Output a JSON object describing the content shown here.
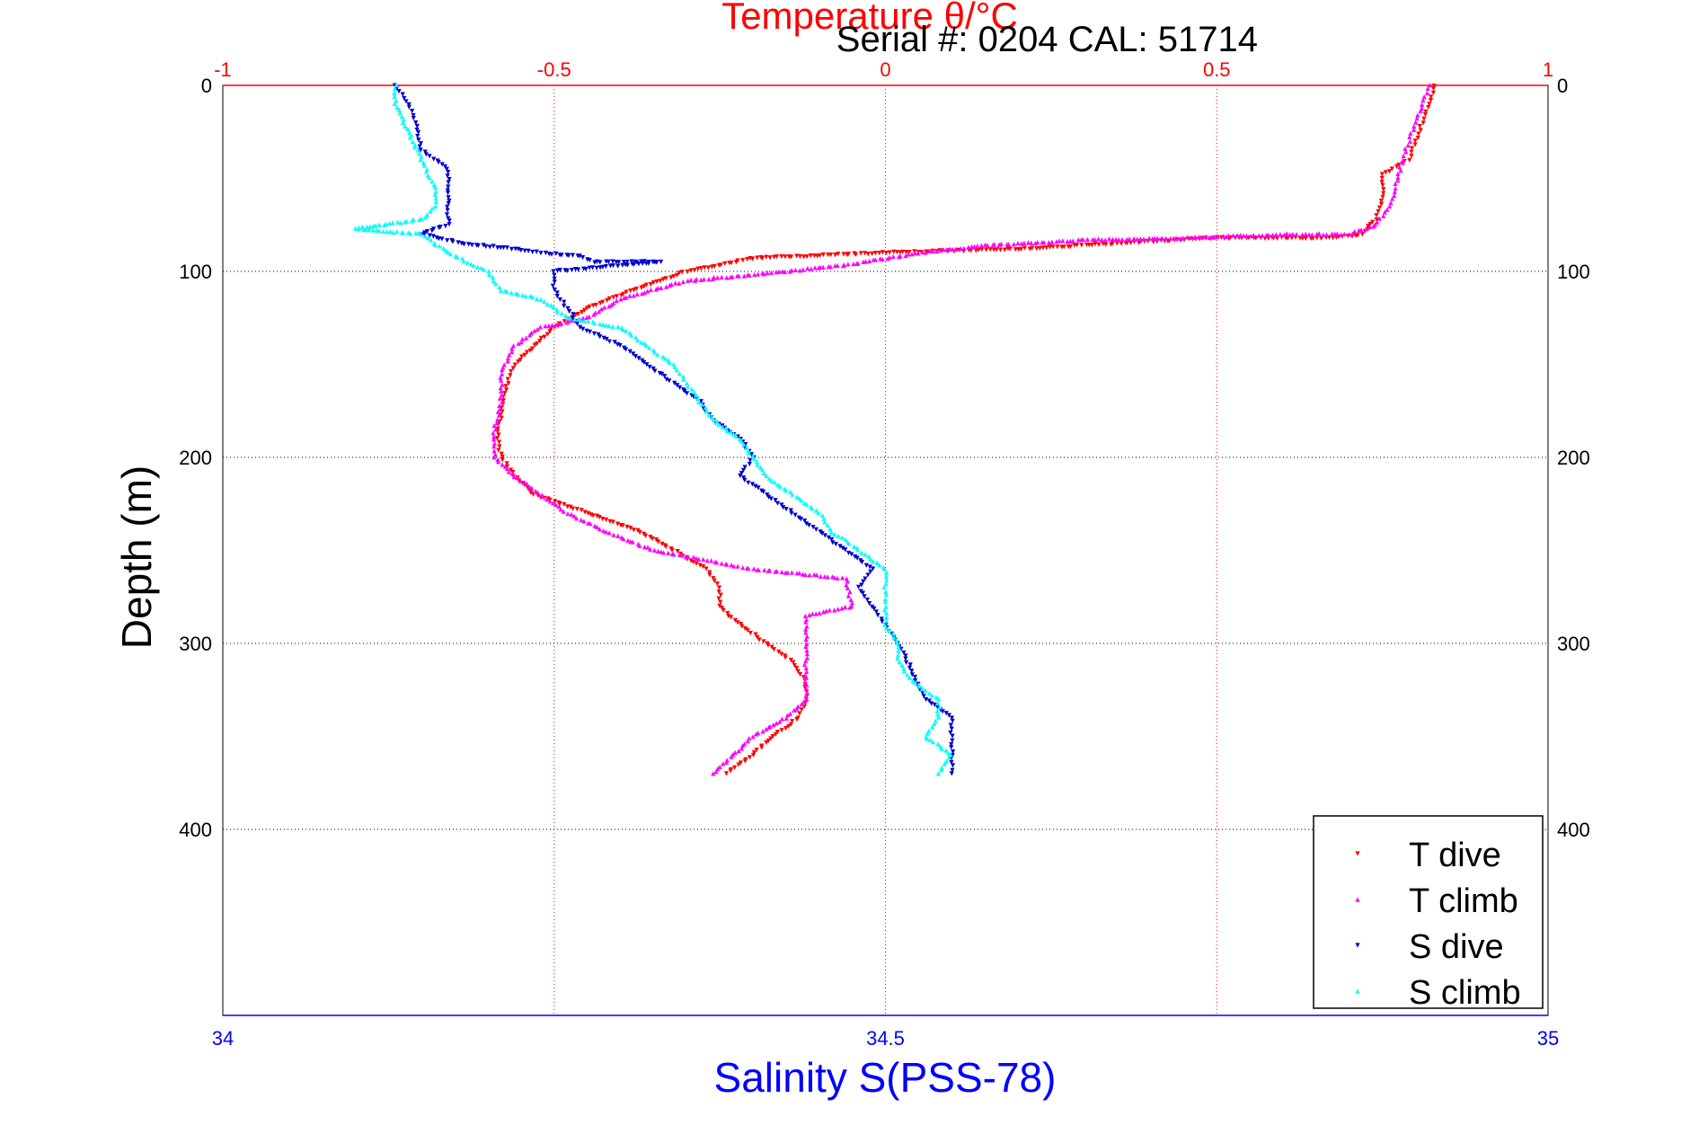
{
  "chart_data": {
    "type": "scatter",
    "title": "Temperature θ/°C",
    "subtitle": "Serial #: 0204  CAL: 51714",
    "xlabel_top": "Temperature θ/°C",
    "xlabel_bottom": "Salinity S(PSS-78)",
    "ylabel": "Depth (m)",
    "top_axis": {
      "range": [
        -1,
        1
      ],
      "ticks": [
        -1,
        -0.5,
        0,
        0.5,
        1
      ],
      "tick_labels": [
        "-1",
        "-0.5",
        "0",
        "0.5",
        "1"
      ],
      "color": "#ff0000"
    },
    "bottom_axis": {
      "range": [
        34,
        35
      ],
      "ticks": [
        34,
        34.5,
        35
      ],
      "tick_labels": [
        "34",
        "34.5",
        "35"
      ],
      "color": "#0000ff"
    },
    "y_axis": {
      "range": [
        0,
        500
      ],
      "reversed": true,
      "ticks": [
        0,
        100,
        200,
        300,
        400
      ],
      "tick_labels": [
        "0",
        "100",
        "200",
        "300",
        "400"
      ]
    },
    "grid": true,
    "legend": {
      "placement": "bottom-right",
      "entries": [
        "T dive",
        "T climb",
        "S dive",
        "S climb"
      ]
    },
    "series": [
      {
        "name": "T dive",
        "axis": "top",
        "color": "#ff0000",
        "points": [
          [
            0.83,
            0
          ],
          [
            0.82,
            10
          ],
          [
            0.81,
            20
          ],
          [
            0.8,
            30
          ],
          [
            0.79,
            40
          ],
          [
            0.75,
            48
          ],
          [
            0.75,
            60
          ],
          [
            0.74,
            72
          ],
          [
            0.72,
            80
          ],
          [
            0.68,
            82
          ],
          [
            0.5,
            82
          ],
          [
            0.35,
            85
          ],
          [
            0.2,
            88
          ],
          [
            0,
            90
          ],
          [
            -0.2,
            93
          ],
          [
            -0.3,
            100
          ],
          [
            -0.38,
            110
          ],
          [
            -0.45,
            120
          ],
          [
            -0.5,
            130
          ],
          [
            -0.53,
            140
          ],
          [
            -0.56,
            150
          ],
          [
            -0.57,
            160
          ],
          [
            -0.58,
            175
          ],
          [
            -0.585,
            190
          ],
          [
            -0.58,
            200
          ],
          [
            -0.56,
            210
          ],
          [
            -0.53,
            220
          ],
          [
            -0.45,
            230
          ],
          [
            -0.37,
            240
          ],
          [
            -0.32,
            250
          ],
          [
            -0.27,
            260
          ],
          [
            -0.25,
            270
          ],
          [
            -0.25,
            280
          ],
          [
            -0.22,
            290
          ],
          [
            -0.18,
            300
          ],
          [
            -0.14,
            310
          ],
          [
            -0.12,
            320
          ],
          [
            -0.12,
            330
          ],
          [
            -0.13,
            340
          ],
          [
            -0.17,
            350
          ],
          [
            -0.2,
            360
          ],
          [
            -0.24,
            370
          ]
        ]
      },
      {
        "name": "T climb",
        "axis": "top",
        "color": "#ff00ff",
        "points": [
          [
            0.82,
            0
          ],
          [
            0.81,
            10
          ],
          [
            0.8,
            20
          ],
          [
            0.79,
            30
          ],
          [
            0.78,
            40
          ],
          [
            0.77,
            55
          ],
          [
            0.76,
            65
          ],
          [
            0.74,
            75
          ],
          [
            0.7,
            80
          ],
          [
            0.6,
            80
          ],
          [
            0.45,
            82
          ],
          [
            0.3,
            83
          ],
          [
            0.15,
            86
          ],
          [
            0.05,
            90
          ],
          [
            -0.05,
            96
          ],
          [
            -0.15,
            100
          ],
          [
            -0.3,
            105
          ],
          [
            -0.4,
            115
          ],
          [
            -0.45,
            125
          ],
          [
            -0.52,
            130
          ],
          [
            -0.56,
            140
          ],
          [
            -0.58,
            155
          ],
          [
            -0.58,
            170
          ],
          [
            -0.59,
            185
          ],
          [
            -0.59,
            200
          ],
          [
            -0.56,
            210
          ],
          [
            -0.52,
            220
          ],
          [
            -0.48,
            230
          ],
          [
            -0.42,
            240
          ],
          [
            -0.35,
            250
          ],
          [
            -0.2,
            260
          ],
          [
            -0.06,
            265
          ],
          [
            -0.05,
            280
          ],
          [
            -0.12,
            285
          ],
          [
            -0.12,
            300
          ],
          [
            -0.12,
            315
          ],
          [
            -0.12,
            330
          ],
          [
            -0.15,
            340
          ],
          [
            -0.2,
            350
          ],
          [
            -0.23,
            360
          ],
          [
            -0.26,
            370
          ]
        ]
      },
      {
        "name": "S dive",
        "axis": "bottom",
        "color": "#0000cc",
        "points": [
          [
            34.13,
            0
          ],
          [
            34.14,
            10
          ],
          [
            34.145,
            20
          ],
          [
            34.15,
            35
          ],
          [
            34.17,
            45
          ],
          [
            34.17,
            60
          ],
          [
            34.17,
            75
          ],
          [
            34.15,
            80
          ],
          [
            34.18,
            85
          ],
          [
            34.22,
            88
          ],
          [
            34.24,
            90
          ],
          [
            34.27,
            92
          ],
          [
            34.28,
            95
          ],
          [
            34.33,
            95
          ],
          [
            34.25,
            100
          ],
          [
            34.25,
            110
          ],
          [
            34.26,
            120
          ],
          [
            34.27,
            130
          ],
          [
            34.3,
            140
          ],
          [
            34.32,
            150
          ],
          [
            34.34,
            160
          ],
          [
            34.36,
            170
          ],
          [
            34.37,
            180
          ],
          [
            34.39,
            190
          ],
          [
            34.4,
            200
          ],
          [
            34.39,
            210
          ],
          [
            34.41,
            220
          ],
          [
            34.43,
            230
          ],
          [
            34.45,
            240
          ],
          [
            34.47,
            250
          ],
          [
            34.49,
            260
          ],
          [
            34.48,
            270
          ],
          [
            34.49,
            280
          ],
          [
            34.5,
            290
          ],
          [
            34.51,
            300
          ],
          [
            34.52,
            315
          ],
          [
            34.53,
            330
          ],
          [
            34.55,
            340
          ],
          [
            34.55,
            350
          ],
          [
            34.55,
            360
          ],
          [
            34.55,
            370
          ]
        ]
      },
      {
        "name": "S climb",
        "axis": "bottom",
        "color": "#00ffff",
        "points": [
          [
            34.13,
            0
          ],
          [
            34.13,
            10
          ],
          [
            34.14,
            25
          ],
          [
            34.15,
            40
          ],
          [
            34.16,
            55
          ],
          [
            34.16,
            65
          ],
          [
            34.15,
            72
          ],
          [
            34.1,
            77
          ],
          [
            34.15,
            80
          ],
          [
            34.17,
            90
          ],
          [
            34.2,
            100
          ],
          [
            34.21,
            110
          ],
          [
            34.24,
            115
          ],
          [
            34.26,
            125
          ],
          [
            34.3,
            130
          ],
          [
            34.32,
            140
          ],
          [
            34.34,
            150
          ],
          [
            34.35,
            160
          ],
          [
            34.36,
            170
          ],
          [
            34.37,
            180
          ],
          [
            34.39,
            190
          ],
          [
            34.41,
            210
          ],
          [
            34.43,
            220
          ],
          [
            34.45,
            230
          ],
          [
            34.46,
            240
          ],
          [
            34.48,
            250
          ],
          [
            34.5,
            260
          ],
          [
            34.5,
            270
          ],
          [
            34.5,
            280
          ],
          [
            34.5,
            290
          ],
          [
            34.51,
            300
          ],
          [
            34.51,
            310
          ],
          [
            34.52,
            320
          ],
          [
            34.54,
            330
          ],
          [
            34.54,
            340
          ],
          [
            34.53,
            350
          ],
          [
            34.55,
            360
          ],
          [
            34.54,
            370
          ]
        ]
      }
    ]
  }
}
